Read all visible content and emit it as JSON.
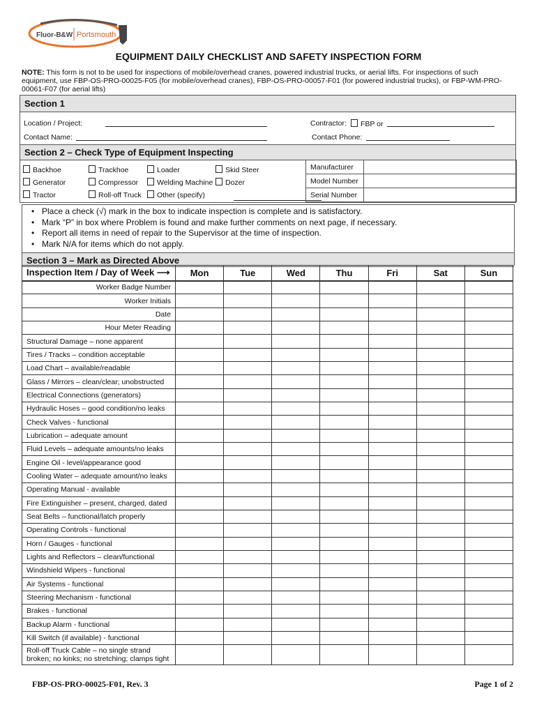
{
  "logo": {
    "left": "Fluor-B&W",
    "right": "Portsmouth",
    "colors": {
      "ring": "#e8732a",
      "text": "#444444",
      "accent": "#d0602a"
    }
  },
  "title": "EQUIPMENT DAILY CHECKLIST AND SAFETY INSPECTION FORM",
  "note": {
    "label": "NOTE:",
    "text": " This form is not to be used for inspections of mobile/overhead cranes, powered industrial trucks, or aerial lifts.  For inspections of such equipment, use FBP-OS-PRO-00025-F05 (for mobile/overhead cranes), FBP-OS-PRO-00057-F01 (for powered industrial trucks), or FBP-WM-PRO-00061-F07 (for aerial lifts)"
  },
  "section1": {
    "title": "Section 1",
    "location": "Location / Project:",
    "contractor": "Contractor:",
    "fbp": "FBP or",
    "contact_name": "Contact Name:",
    "contact_phone": "Contact Phone:"
  },
  "section2": {
    "title": "Section 2 – Check Type of Equipment Inspecting",
    "options": [
      "Backhoe",
      "Trackhoe",
      "Loader",
      "Skid Steer",
      "Generator",
      "Compressor",
      "Welding Machine",
      "Dozer",
      "Tractor",
      "Roll-off Truck",
      "Other (specify)"
    ],
    "fields": [
      "Manufacturer",
      "Model Number",
      "Serial Number"
    ]
  },
  "instructions": [
    "Place a check (√) mark in the box to indicate inspection is complete and is satisfactory.",
    "Mark “P” in box where Problem is found and make further comments on next page, if necessary.",
    "Report all items in need of repair to the Supervisor at the time of inspection.",
    "Mark N/A for items which do not apply."
  ],
  "section3": {
    "title": "Section 3 – Mark as Directed Above",
    "header": "Inspection Item / Day of Week",
    "days": [
      "Mon",
      "Tue",
      "Wed",
      "Thu",
      "Fri",
      "Sat",
      "Sun"
    ],
    "meta_rows": [
      "Worker Badge Number",
      "Worker Initials",
      "Date",
      "Hour Meter Reading"
    ],
    "items": [
      "Structural Damage – none apparent",
      "Tires / Tracks – condition acceptable",
      "Load Chart – available/readable",
      "Glass / Mirrors – clean/clear; unobstructed",
      "Electrical Connections (generators)",
      "Hydraulic Hoses – good condition/no leaks",
      "Check Valves - functional",
      "Lubrication – adequate amount",
      "Fluid Levels – adequate amounts/no leaks",
      "Engine Oil - level/appearance good",
      "Cooling Water – adequate amount/no leaks",
      "Operating Manual - available",
      "Fire Extinguisher – present, charged, dated",
      "Seat Belts – functional/latch properly",
      "Operating Controls - functional",
      "Horn / Gauges - functional",
      "Lights and Reflectors – clean/functional",
      "Windshield Wipers - functional",
      "Air Systems - functional",
      "Steering Mechanism - functional",
      "Brakes - functional",
      "Backup Alarm - functional",
      "Kill Switch (if available) - functional",
      "Roll-off Truck Cable – no single strand broken; no kinks; no stretching; clamps tight"
    ]
  },
  "footer": {
    "form_id": "FBP-OS-PRO-00025-F01, Rev. 3",
    "page": "Page 1 of 2"
  }
}
